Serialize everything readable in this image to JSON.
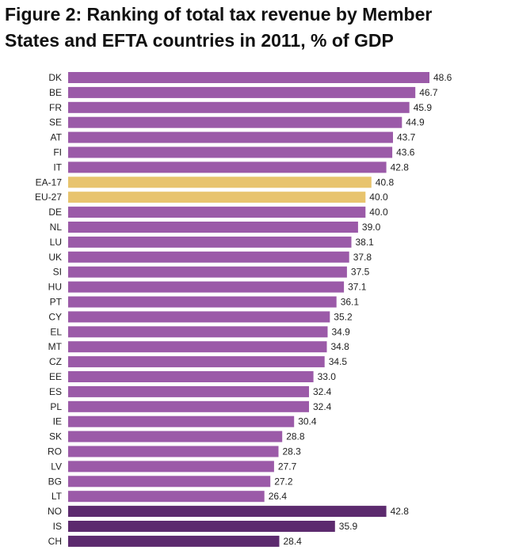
{
  "header": {
    "title_line1": "Figure 2: Ranking of total tax revenue by Member",
    "title_line2": "States and EFTA countries in 2011, % of GDP"
  },
  "colors": {
    "member": "#9b5aa8",
    "aggregate": "#e8c46e",
    "efta": "#5c2a6e"
  },
  "chart_data": {
    "type": "bar",
    "orientation": "horizontal",
    "title": "Figure 2: Ranking of total tax revenue by Member States and EFTA countries in 2011, % of GDP",
    "xlabel": "",
    "ylabel": "",
    "xlim": [
      0,
      48.6
    ],
    "grid": false,
    "legend": "none",
    "categories": [
      "DK",
      "BE",
      "FR",
      "SE",
      "AT",
      "FI",
      "IT",
      "EA-17",
      "EU-27",
      "DE",
      "NL",
      "LU",
      "UK",
      "SI",
      "HU",
      "PT",
      "CY",
      "EL",
      "MT",
      "CZ",
      "EE",
      "ES",
      "PL",
      "IE",
      "SK",
      "RO",
      "LV",
      "BG",
      "LT",
      "NO",
      "IS",
      "CH"
    ],
    "values": [
      48.6,
      46.7,
      45.9,
      44.9,
      43.7,
      43.6,
      42.8,
      40.8,
      40.0,
      40.0,
      39.0,
      38.1,
      37.8,
      37.5,
      37.1,
      36.1,
      35.2,
      34.9,
      34.8,
      34.5,
      33.0,
      32.4,
      32.4,
      30.4,
      28.8,
      28.3,
      27.7,
      27.2,
      26.4,
      42.8,
      35.9,
      28.4
    ],
    "value_labels": [
      "48.6",
      "46.7",
      "45.9",
      "44.9",
      "43.7",
      "43.6",
      "42.8",
      "40.8",
      "40.0",
      "40.0",
      "39.0",
      "38.1",
      "37.8",
      "37.5",
      "37.1",
      "36.1",
      "35.2",
      "34.9",
      "34.8",
      "34.5",
      "33.0",
      "32.4",
      "32.4",
      "30.4",
      "28.8",
      "28.3",
      "27.7",
      "27.2",
      "26.4",
      "42.8",
      "35.9",
      "28.4"
    ],
    "groups": [
      "member",
      "member",
      "member",
      "member",
      "member",
      "member",
      "member",
      "aggregate",
      "aggregate",
      "member",
      "member",
      "member",
      "member",
      "member",
      "member",
      "member",
      "member",
      "member",
      "member",
      "member",
      "member",
      "member",
      "member",
      "member",
      "member",
      "member",
      "member",
      "member",
      "member",
      "efta",
      "efta",
      "efta"
    ]
  }
}
